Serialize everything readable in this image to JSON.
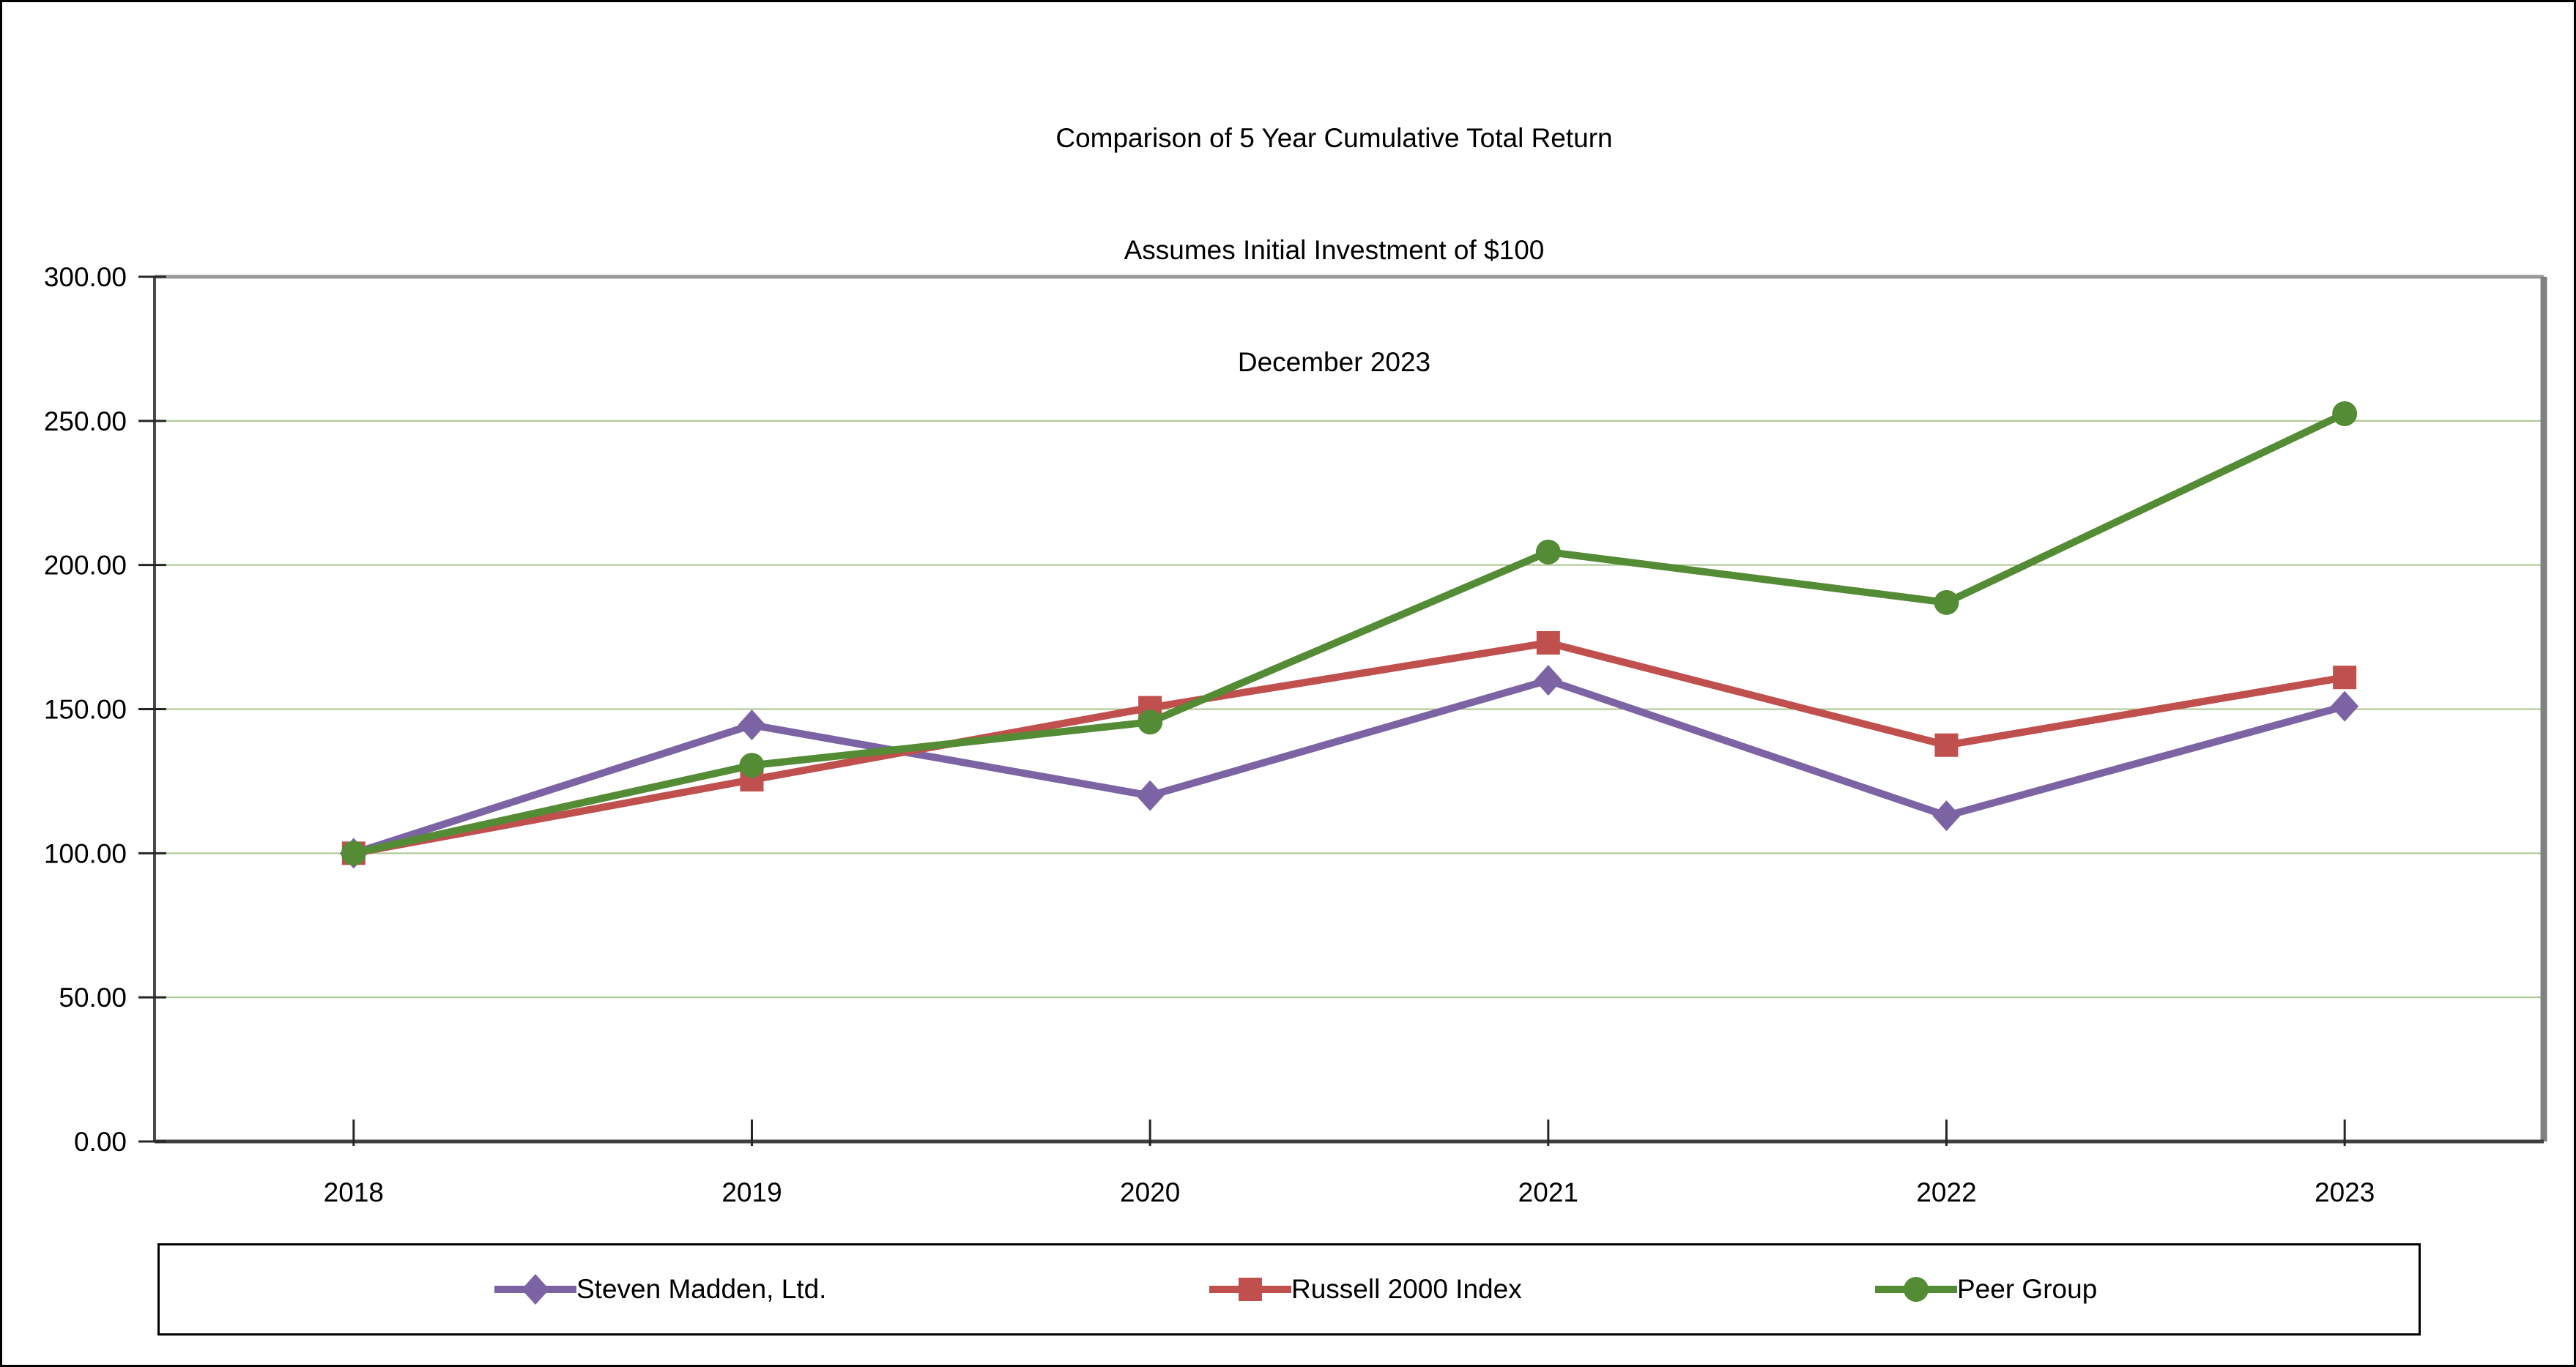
{
  "chart_data": {
    "type": "line",
    "title_lines": [
      "Comparison of 5 Year Cumulative Total Return",
      "Assumes Initial Investment of $100",
      "December 2023"
    ],
    "categories": [
      "2018",
      "2019",
      "2020",
      "2021",
      "2022",
      "2023"
    ],
    "series": [
      {
        "name": "Steven Madden, Ltd.",
        "marker": "diamond",
        "color": "#7C64A4",
        "values": [
          100.0,
          144.5,
          120.0,
          160.0,
          113.0,
          151.0
        ]
      },
      {
        "name": "Russell 2000 Index",
        "marker": "square",
        "color": "#C0504D",
        "values": [
          100.0,
          125.5,
          150.5,
          173.0,
          137.5,
          161.0
        ]
      },
      {
        "name": "Peer Group",
        "marker": "circle",
        "color": "#548B35",
        "values": [
          100.0,
          130.5,
          145.5,
          204.5,
          187.0,
          252.5
        ]
      }
    ],
    "xlabel": "",
    "ylabel": "",
    "ylim": [
      0,
      300
    ],
    "ytick_step": 50,
    "ytick_labels": [
      "0.00",
      "50.00",
      "100.00",
      "150.00",
      "200.00",
      "250.00",
      "300.00"
    ],
    "grid": true,
    "legend_position": "bottom",
    "colors": {
      "grid_line": "#A9C68E",
      "axis_left": "#4A4A4A",
      "axis_bottom": "#3F3F3F",
      "border_top": "#999999",
      "border_right": "#808080",
      "tick": "#262626",
      "text": "#000000",
      "background": "#FFFFFF"
    }
  }
}
